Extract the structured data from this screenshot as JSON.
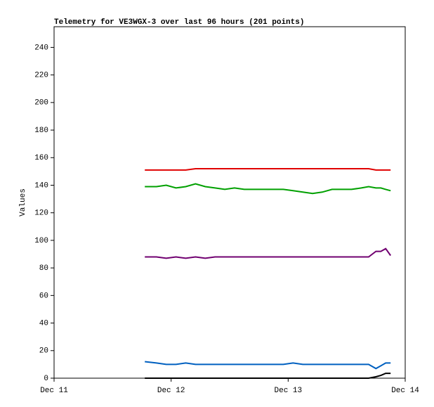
{
  "chart_data": {
    "type": "line",
    "title": "Telemetry for VE3WGX-3 over last 96 hours (201 points)",
    "y_label": "Values",
    "x": [
      18.6,
      21,
      23,
      25,
      27,
      29,
      31,
      33,
      35,
      37,
      39,
      41,
      43,
      45,
      47,
      49,
      51,
      53,
      55,
      57,
      59,
      61,
      63,
      64.5,
      66,
      67,
      68,
      69
    ],
    "xlim": [
      0,
      72
    ],
    "xticks": [
      {
        "value": 0,
        "label": "Dec 11"
      },
      {
        "value": 24,
        "label": "Dec 12"
      },
      {
        "value": 48,
        "label": "Dec 13"
      },
      {
        "value": 72,
        "label": "Dec 14"
      }
    ],
    "ylim": [
      0,
      255
    ],
    "yticks": [
      0,
      20,
      40,
      60,
      80,
      100,
      120,
      140,
      160,
      180,
      200,
      220,
      240
    ],
    "grid": false,
    "series": [
      {
        "color": "#e00000",
        "values": [
          151,
          151,
          151,
          151,
          151,
          152,
          152,
          152,
          152,
          152,
          152,
          152,
          152,
          152,
          152,
          152,
          152,
          152,
          152,
          152,
          152,
          152,
          152,
          152,
          151,
          151,
          151,
          151
        ]
      },
      {
        "color": "#00a000",
        "values": [
          139,
          139,
          140,
          138,
          139,
          141,
          139,
          138,
          137,
          138,
          137,
          137,
          137,
          137,
          137,
          136,
          135,
          134,
          135,
          137,
          137,
          137,
          138,
          139,
          138,
          138,
          137,
          136
        ]
      },
      {
        "color": "#700070",
        "values": [
          88,
          88,
          87,
          88,
          87,
          88,
          87,
          88,
          88,
          88,
          88,
          88,
          88,
          88,
          88,
          88,
          88,
          88,
          88,
          88,
          88,
          88,
          88,
          88,
          92,
          92,
          94,
          89
        ]
      },
      {
        "color": "#0060c0",
        "values": [
          12,
          11,
          10,
          10,
          11,
          10,
          10,
          10,
          10,
          10,
          10,
          10,
          10,
          10,
          10,
          11,
          10,
          10,
          10,
          10,
          10,
          10,
          10,
          10,
          7,
          9,
          11,
          11
        ]
      },
      {
        "color": "#000000",
        "values": [
          0,
          0,
          0,
          0,
          0,
          0,
          0,
          0,
          0,
          0,
          0,
          0,
          0,
          0,
          0,
          0,
          0,
          0,
          0,
          0,
          0,
          0,
          0,
          0,
          1,
          2,
          3.5,
          3.5
        ]
      }
    ]
  }
}
